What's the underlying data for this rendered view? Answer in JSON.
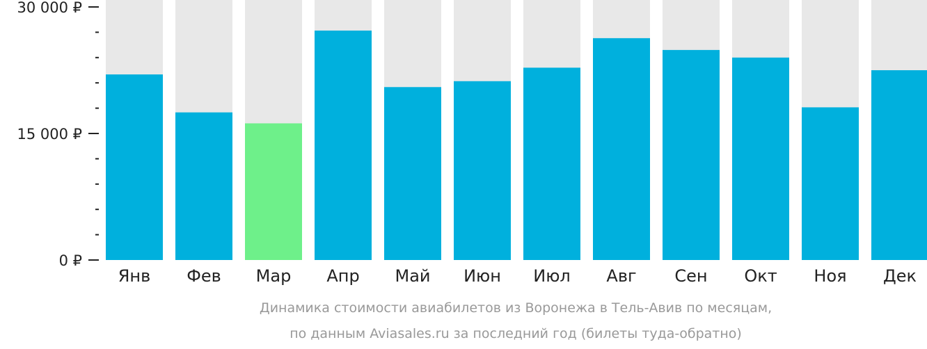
{
  "chart_data": {
    "type": "bar",
    "categories": [
      "Янв",
      "Фев",
      "Мар",
      "Апр",
      "Май",
      "Июн",
      "Июл",
      "Авг",
      "Сен",
      "Окт",
      "Ноя",
      "Дек"
    ],
    "values": [
      22000,
      17500,
      16200,
      27200,
      20500,
      21200,
      22800,
      26300,
      24900,
      24000,
      18100,
      22500
    ],
    "ylim": [
      0,
      30000
    ],
    "yticks": [
      {
        "value": 0,
        "label": "0 ₽"
      },
      {
        "value": 15000,
        "label": "15 000 ₽"
      },
      {
        "value": 30000,
        "label": "30 000 ₽"
      }
    ],
    "minor_tick_step": 3000,
    "highlight_index": 2,
    "colors": {
      "bar": "#00b0dd",
      "highlight": "#6ef08a",
      "background_bar": "#e8e8e8",
      "axis": "#222222"
    },
    "caption_line1": "Динамика стоимости авиабилетов из Воронежа в Тель-Авив по месяцам,",
    "caption_line2": "по данным Aviasales.ru за последний год (билеты туда-обратно)"
  }
}
